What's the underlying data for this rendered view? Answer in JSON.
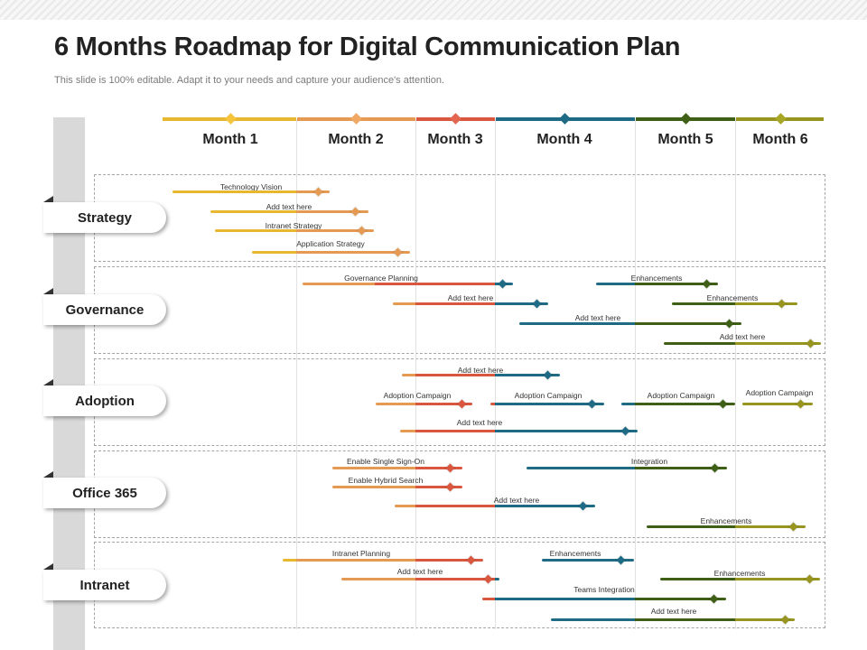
{
  "title": "6 Months Roadmap for Digital Communication Plan",
  "subtitle": "This slide is 100% editable. Adapt it to your needs and capture your audience's attention.",
  "colors": {
    "m1": "#e8b730",
    "m2": "#e49a52",
    "m3": "#d9573f",
    "m4": "#1f6b85",
    "m5": "#3f5f17",
    "m6": "#97951f"
  },
  "months": [
    "Month 1",
    "Month 2",
    "Month 3",
    "Month 4",
    "Month 5",
    "Month 6"
  ],
  "categories": {
    "strategy": "Strategy",
    "governance": "Governance",
    "adoption": "Adoption",
    "office365": "Office 365",
    "intranet": "Intranet"
  },
  "tasks": {
    "technology_vision": "Technology Vision",
    "strategy_add_text": "Add text here",
    "intranet_strategy": "Intranet Strategy",
    "application_strategy": "Application Strategy",
    "governance_planning": "Governance Planning",
    "governance_add_text_1": "Add text here",
    "governance_add_text_2": "Add text here",
    "governance_enhancements_1": "Enhancements",
    "governance_enhancements_2": "Enhancements",
    "governance_add_text_3": "Add text here",
    "adoption_add_text_1": "Add text here",
    "adoption_campaign_1": "Adoption Campaign",
    "adoption_campaign_2": "Adoption Campaign",
    "adoption_campaign_3": "Adoption Campaign",
    "adoption_campaign_4": "Adoption Campaign",
    "adoption_add_text_2": "Add text here",
    "enable_sso": "Enable Single Sign-On",
    "enable_hybrid_search": "Enable Hybrid Search",
    "integration": "Integration",
    "office_add_text": "Add text here",
    "office_enhancements": "Enhancements",
    "intranet_planning": "Intranet Planning",
    "intranet_enhancements_1": "Enhancements",
    "intranet_add_text_1": "Add text here",
    "intranet_enhancements_2": "Enhancements",
    "teams_integration": "Teams Integration",
    "intranet_add_text_2": "Add text here"
  }
}
